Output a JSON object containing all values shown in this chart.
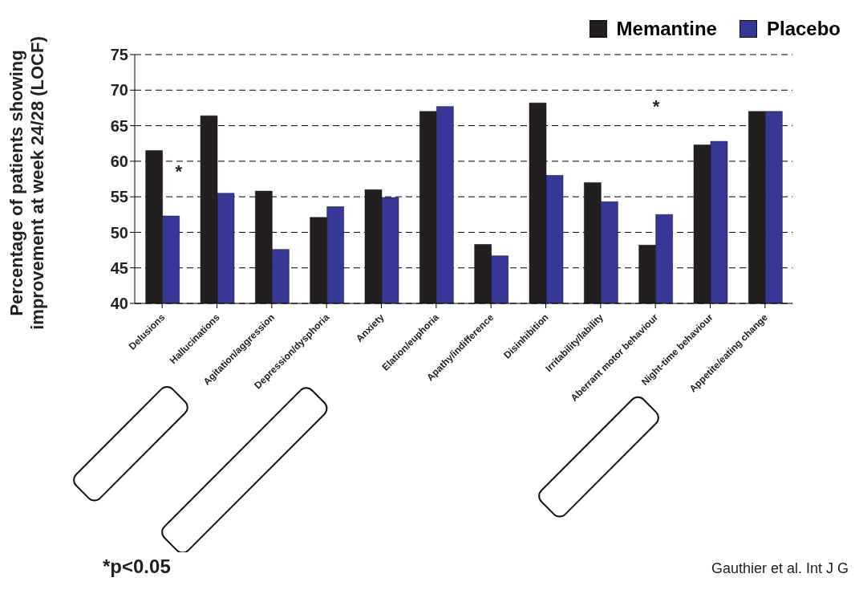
{
  "chart_data": {
    "type": "bar",
    "ylabel": "Percentage of patients showing improvement at week 24/28 (LOCF)",
    "categories": [
      "Delusions",
      "Hallucinations",
      "Agitation/aggression",
      "Depression/dysphoria",
      "Anxiety",
      "Elation/euphoria",
      "Apathy/indifference",
      "Disinhibition",
      "Irritability/lability",
      "Aberrant motor behaviour",
      "Night-time behaviour",
      "Appetite/eating change"
    ],
    "series": [
      {
        "name": "Memantine",
        "color": "#231f20",
        "values": [
          61.5,
          66.4,
          55.8,
          52.1,
          56.0,
          67.0,
          48.3,
          68.2,
          57.0,
          48.2,
          62.3,
          67.0
        ]
      },
      {
        "name": "Placebo",
        "color": "#353896",
        "values": [
          52.3,
          55.5,
          47.6,
          53.6,
          54.9,
          67.7,
          46.7,
          58.0,
          54.3,
          52.5,
          62.8,
          67.0
        ]
      }
    ],
    "ylim": [
      40,
      75
    ],
    "yticks": [
      40,
      45,
      50,
      55,
      60,
      65,
      70,
      75
    ],
    "grid": "y",
    "legend": "top right",
    "annotations": [
      {
        "text": "*",
        "x": "Delusions",
        "y": 58.8
      },
      "*",
      "*p<0.05",
      "Gauthier et al. Int J G"
    ]
  }
}
